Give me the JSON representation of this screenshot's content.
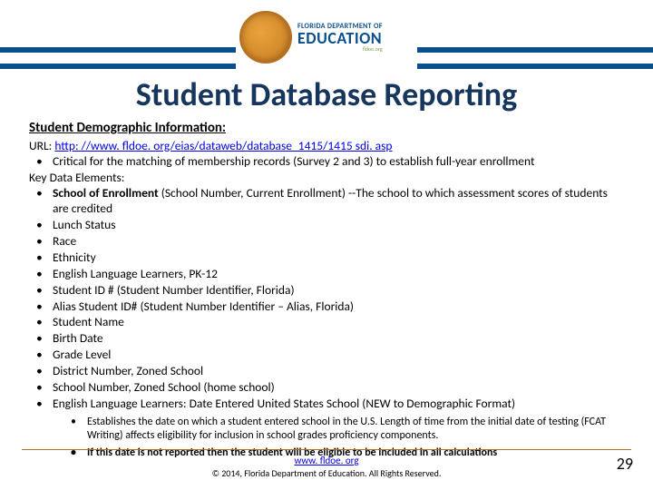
{
  "logo": {
    "small": "FLORIDA DEPARTMENT OF",
    "big": "EDUCATION",
    "url": "fldoe.org"
  },
  "title": "Student Database Reporting",
  "subtitle": "Student Demographic Information:",
  "url_label": "URL: ",
  "url_link": "http: //www. fldoe. org/eias/dataweb/database_1415/1415 sdi. asp",
  "bullet0": "Critical for the matching of membership records (Survey 2 and 3) to establish full-year enrollment",
  "kde_label": "Key Data Elements:",
  "bullets": {
    "b1_pre": "School of Enrollment ",
    "b1_post": "(School Number, Current Enrollment) --The school to which assessment scores of students are credited",
    "b2": "Lunch Status",
    "b3": "Race",
    "b4": "Ethnicity",
    "b5": "English Language Learners, PK-12",
    "b6": "Student ID # (Student Number Identifier, Florida)",
    "b7": "Alias Student ID# (Student Number Identifier – Alias, Florida)",
    "b8": "Student Name",
    "b9": "Birth Date",
    "b10": "Grade Level",
    "b11": "District Number, Zoned School",
    "b12": "School Number, Zoned School (home school)",
    "b13": "English Language Learners: Date Entered United States School (NEW to Demographic Format)"
  },
  "sub_bullets": {
    "s1": "Establishes the date on which a student entered school in the U.S. Length of time from the initial date of testing (FCAT Writing) affects eligibility for inclusion in school grades proficiency components.",
    "s2": "If this date is not reported then the student will be eligible to be included in all calculations"
  },
  "footer_link": "www. fldoe. org",
  "footer_copy": "© 2014, Florida Department of Education. All Rights Reserved.",
  "page_num": "29"
}
